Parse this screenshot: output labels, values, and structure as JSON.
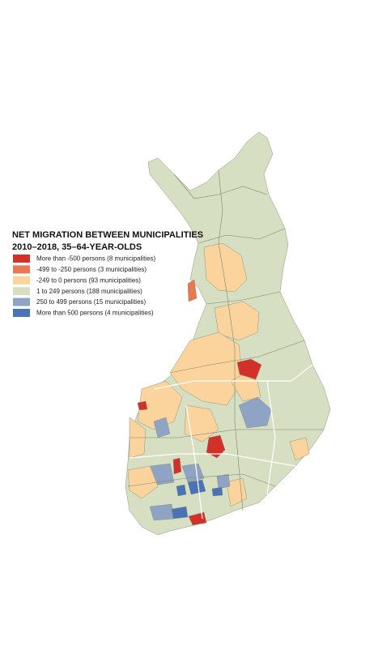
{
  "title": [
    "NET MIGRATION BETWEEN MUNICIPALITIES",
    "2010–2018, 35–64-YEAR-OLDS"
  ],
  "legend": [
    {
      "label": "More than -500 persons (8 municipalities)",
      "color": "#d3302a"
    },
    {
      "label": "-499 to -250 persons (3 municipalities)",
      "color": "#e8784f"
    },
    {
      "label": "-249 to 0 persons (93 municipalities)",
      "color": "#fbd49d"
    },
    {
      "label": "1 to 249 persons (188 municipalities)",
      "color": "#d6dfc2"
    },
    {
      "label": "250 to 499 persons (15 municipalities)",
      "color": "#8fa4c4"
    },
    {
      "label": "More than 500 persons (4 municipalities)",
      "color": "#4a73b6"
    }
  ]
}
